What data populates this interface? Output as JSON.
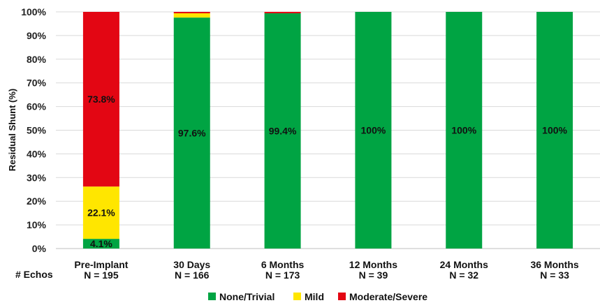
{
  "chart_data": {
    "type": "bar",
    "stacked": true,
    "categories": [
      "Pre-Implant",
      "30 Days",
      "6 Months",
      "12 Months",
      "24 Months",
      "36 Months"
    ],
    "category_counts": [
      "N = 195",
      "N = 166",
      "N = 173",
      "N = 39",
      "N = 32",
      "N = 33"
    ],
    "counts_label": "# Echos",
    "ylabel": "Residual Shunt (%)",
    "ylim": [
      0,
      100
    ],
    "yticks": [
      0,
      10,
      20,
      30,
      40,
      50,
      60,
      70,
      80,
      90,
      100
    ],
    "ytick_suffix": "%",
    "grid": true,
    "legend_position": "bottom",
    "series": [
      {
        "name": "None/Trivial",
        "color": "#00A443",
        "values": [
          4.1,
          97.6,
          99.4,
          100,
          100,
          100
        ],
        "labels": [
          "4.1%",
          "97.6%",
          "99.4%",
          "100%",
          "100%",
          "100%"
        ]
      },
      {
        "name": "Mild",
        "color": "#FFE600",
        "values": [
          22.1,
          1.8,
          0,
          0,
          0,
          0
        ],
        "labels": [
          "22.1%",
          "",
          "",
          "",
          "",
          ""
        ]
      },
      {
        "name": "Moderate/Severe",
        "color": "#E30613",
        "values": [
          73.8,
          0.6,
          0.6,
          0,
          0,
          0
        ],
        "labels": [
          "73.8%",
          "",
          "",
          "",
          "",
          ""
        ]
      }
    ]
  }
}
